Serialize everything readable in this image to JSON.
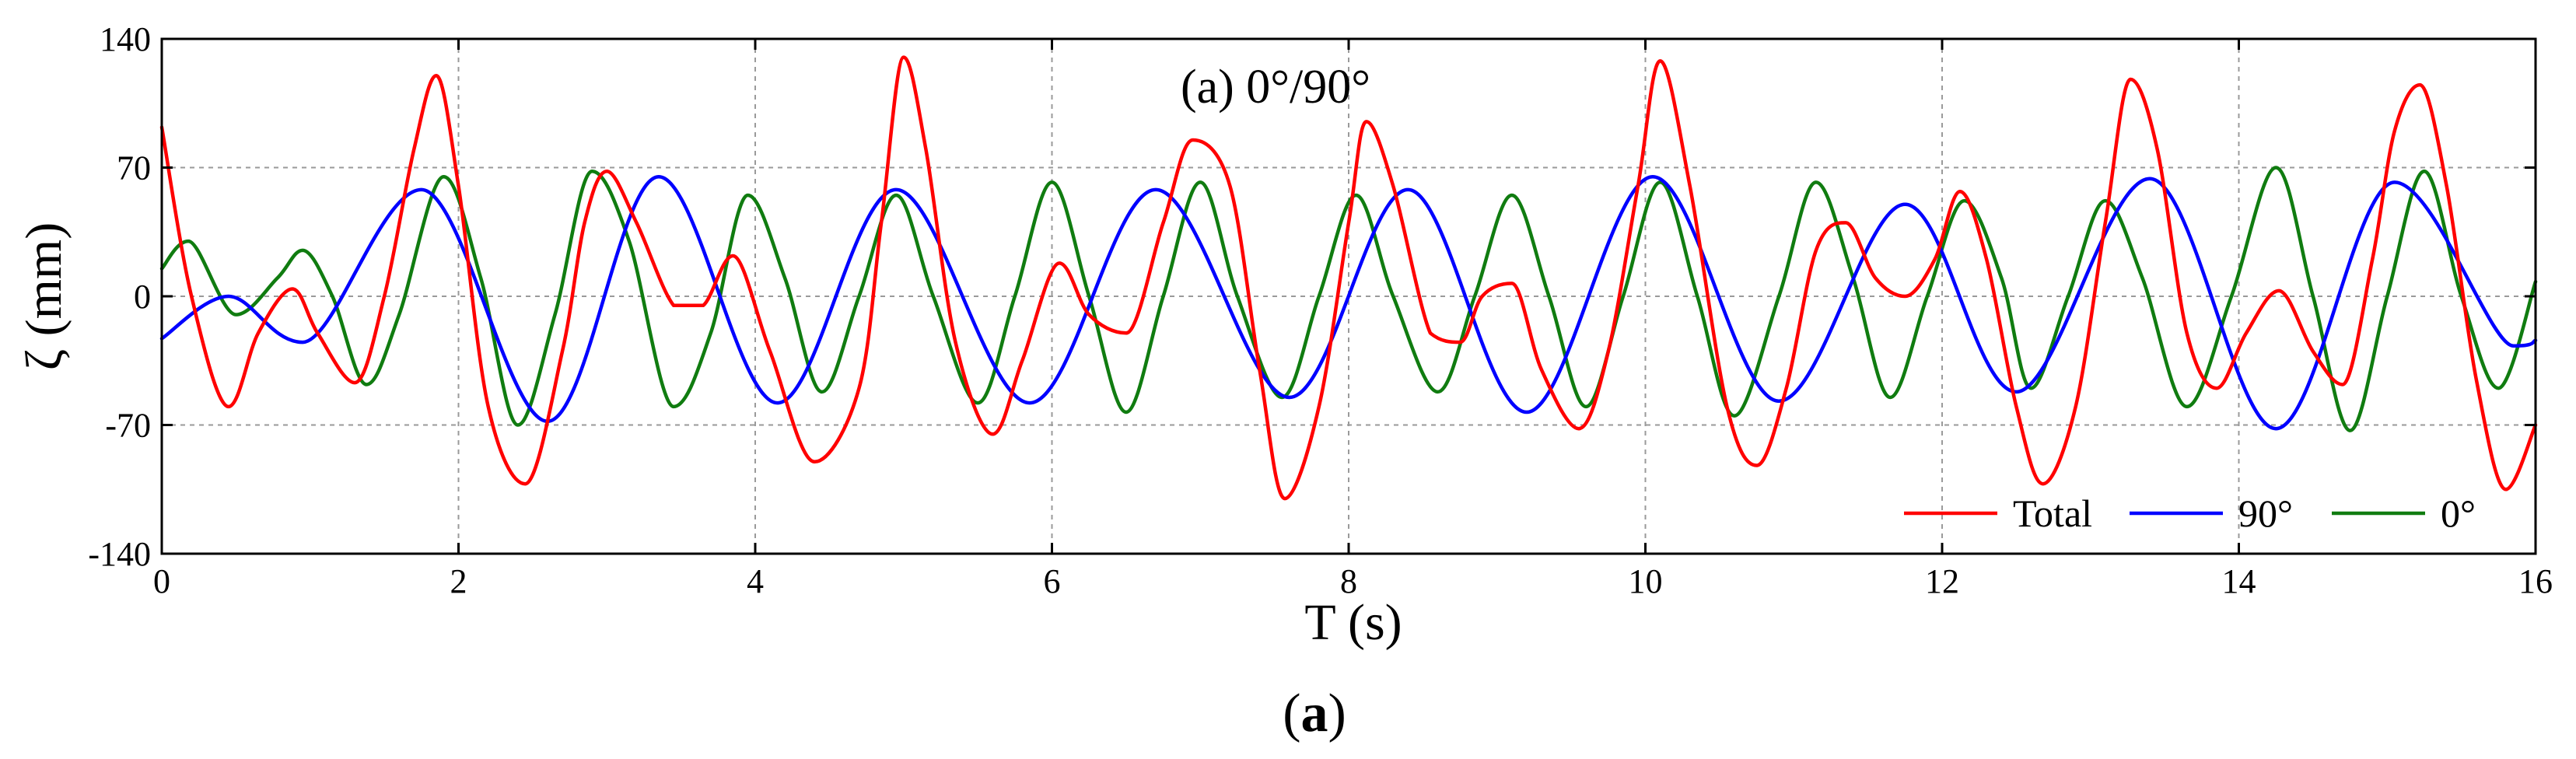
{
  "chart_data": {
    "type": "line",
    "title": "(a) 0°/90°",
    "xlabel": "T (s)",
    "ylabel": "ζ (mm)",
    "xlim": [
      0,
      16
    ],
    "ylim": [
      -140,
      140
    ],
    "x_ticks": [
      "0",
      "2",
      "4",
      "6",
      "8",
      "10",
      "12",
      "14",
      "16"
    ],
    "y_ticks": [
      "140",
      "70",
      "0",
      "-70",
      "-140"
    ],
    "grid": true,
    "legend_position": "bottom-right",
    "series": [
      {
        "name": "Total",
        "color": "#ff0000",
        "x": [
          0,
          0.2,
          0.45,
          0.65,
          0.88,
          1.05,
          1.3,
          1.5,
          1.7,
          1.85,
          2.0,
          2.2,
          2.45,
          2.7,
          2.85,
          3.0,
          3.2,
          3.45,
          3.65,
          3.85,
          4.1,
          4.4,
          4.7,
          4.85,
          5.0,
          5.15,
          5.35,
          5.6,
          5.8,
          6.05,
          6.25,
          6.5,
          6.75,
          6.95,
          7.2,
          7.4,
          7.57,
          7.8,
          8.0,
          8.12,
          8.3,
          8.55,
          8.75,
          8.9,
          9.1,
          9.3,
          9.55,
          9.75,
          9.95,
          10.1,
          10.3,
          10.55,
          10.75,
          10.95,
          11.15,
          11.35,
          11.55,
          11.75,
          11.95,
          12.12,
          12.3,
          12.5,
          12.68,
          12.9,
          13.1,
          13.27,
          13.45,
          13.65,
          13.85,
          14.05,
          14.27,
          14.5,
          14.7,
          14.9,
          15.05,
          15.22,
          15.4,
          15.6,
          15.8,
          16.0
        ],
        "values": [
          92,
          0,
          -60,
          -20,
          4,
          -20,
          -47,
          0,
          80,
          120,
          60,
          -60,
          -102,
          -30,
          40,
          68,
          40,
          -5,
          -5,
          22,
          -30,
          -90,
          -50,
          40,
          130,
          80,
          -25,
          -75,
          -35,
          18,
          -10,
          -20,
          40,
          85,
          60,
          -40,
          -110,
          -60,
          40,
          95,
          60,
          -20,
          -25,
          0,
          7,
          -40,
          -72,
          -30,
          60,
          128,
          60,
          -60,
          -92,
          -50,
          25,
          40,
          10,
          0,
          20,
          57,
          20,
          -60,
          -102,
          -60,
          40,
          118,
          80,
          -20,
          -50,
          -20,
          3,
          -30,
          -48,
          20,
          90,
          115,
          60,
          -45,
          -105,
          -70
        ]
      },
      {
        "name": "90°",
        "color": "#0000ff",
        "x": [
          0,
          0.45,
          0.95,
          1.75,
          2.6,
          3.35,
          4.15,
          4.95,
          5.85,
          6.7,
          7.6,
          8.4,
          9.2,
          10.05,
          10.9,
          11.75,
          12.5,
          13.4,
          14.25,
          15.05,
          15.85,
          16.0
        ],
        "values": [
          -23,
          0,
          -25,
          58,
          -68,
          65,
          -58,
          58,
          -58,
          58,
          -55,
          58,
          -63,
          65,
          -57,
          50,
          -52,
          64,
          -72,
          62,
          -27,
          -24
        ]
      },
      {
        "name": "0°",
        "color": "#107c10",
        "x": [
          0,
          0.18,
          0.5,
          0.78,
          0.95,
          1.15,
          1.38,
          1.6,
          1.9,
          2.15,
          2.4,
          2.65,
          2.9,
          3.15,
          3.45,
          3.7,
          3.95,
          4.2,
          4.45,
          4.7,
          4.95,
          5.2,
          5.5,
          5.75,
          6.0,
          6.25,
          6.5,
          6.75,
          7.0,
          7.25,
          7.55,
          7.8,
          8.05,
          8.3,
          8.6,
          8.85,
          9.1,
          9.35,
          9.6,
          9.85,
          10.1,
          10.35,
          10.6,
          10.9,
          11.15,
          11.4,
          11.65,
          11.9,
          12.15,
          12.4,
          12.6,
          12.85,
          13.1,
          13.35,
          13.65,
          13.95,
          14.25,
          14.5,
          14.75,
          15.0,
          15.25,
          15.5,
          15.75,
          16.0
        ],
        "values": [
          15,
          30,
          -10,
          10,
          25,
          0,
          -48,
          -10,
          65,
          10,
          -70,
          -10,
          68,
          30,
          -60,
          -20,
          55,
          10,
          -52,
          0,
          55,
          0,
          -58,
          0,
          62,
          0,
          -63,
          0,
          62,
          0,
          -55,
          0,
          55,
          0,
          -52,
          0,
          55,
          0,
          -60,
          0,
          62,
          0,
          -65,
          0,
          62,
          10,
          -55,
          0,
          52,
          10,
          -50,
          0,
          52,
          10,
          -60,
          0,
          70,
          0,
          -73,
          0,
          68,
          0,
          -50,
          8
        ]
      }
    ]
  },
  "caption": {
    "open": "(",
    "letter": "a",
    "close": ")"
  }
}
